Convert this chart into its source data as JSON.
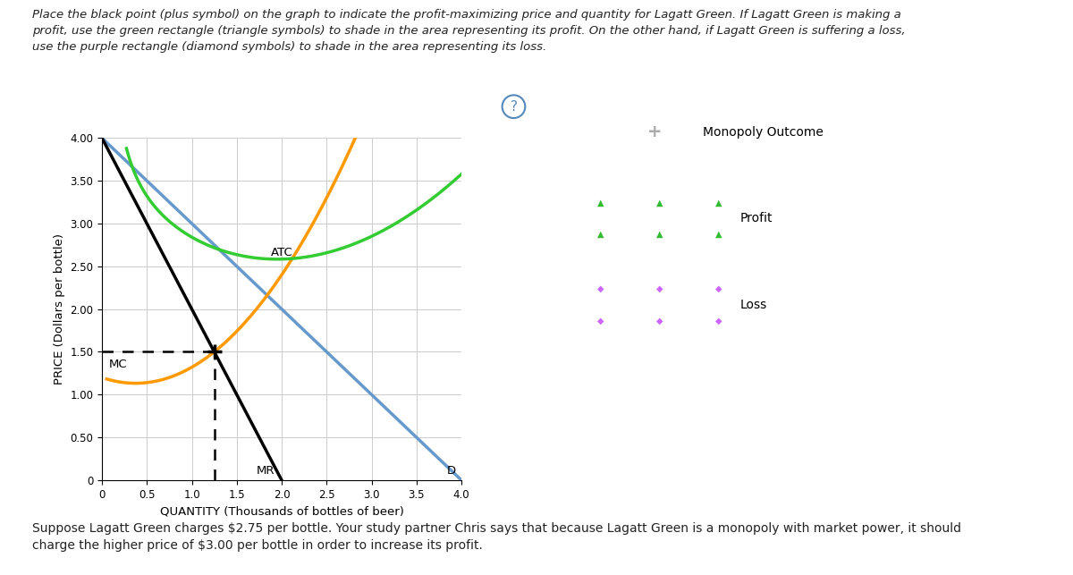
{
  "title_text": "Place the black point (plus symbol) on the graph to indicate the profit-maximizing price and quantity for Lagatt Green. If Lagatt Green is making a\nprofit, use the green rectangle (triangle symbols) to shade in the area representing its profit. On the other hand, if Lagatt Green is suffering a loss,\nuse the purple rectangle (diamond symbols) to shade in the area representing its loss.",
  "xlabel": "QUANTITY (Thousands of bottles of beer)",
  "ylabel": "PRICE (Dollars per bottle)",
  "xlim": [
    0,
    4.0
  ],
  "ylim": [
    0,
    4.0
  ],
  "xticks": [
    0,
    0.5,
    1.0,
    1.5,
    2.0,
    2.5,
    3.0,
    3.5,
    4.0
  ],
  "yticks": [
    0,
    0.5,
    1.0,
    1.5,
    2.0,
    2.5,
    3.0,
    3.5,
    4.0
  ],
  "D_color": "#6699cc",
  "MR_color": "#000000",
  "MC_color": "#ff9900",
  "ATC_color": "#33cc33",
  "monopoly_point_color": "#000000",
  "monopoly_x": 1.25,
  "monopoly_y": 1.5,
  "dashed_line_color": "#000000",
  "bottom_text": "Suppose Lagatt Green charges $2.75 per bottle. Your study partner Chris says that because Lagatt Green is a monopoly with market power, it should\ncharge the higher price of $3.00 per bottle in order to increase its profit.",
  "legend_plus_color": "#aaaaaa",
  "legend_profit_color": "#44bb44",
  "legend_loss_color": "#9933cc",
  "background_color": "#ffffff",
  "plot_bg_color": "#ffffff",
  "panel_bg_color": "#ffffff",
  "grid_color": "#cccccc",
  "panel_border_color": "#cccccc"
}
